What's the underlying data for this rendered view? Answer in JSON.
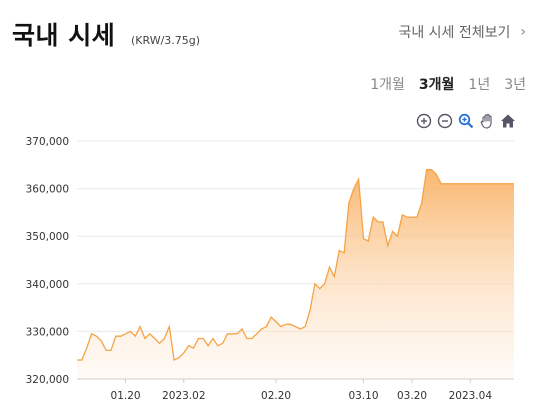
{
  "header": {
    "title": "국내 시세",
    "unit": "(KRW/3.75g)",
    "view_all": "국내 시세 전체보기"
  },
  "periods": [
    {
      "label": "1개월",
      "active": false
    },
    {
      "label": "3개월",
      "active": true
    },
    {
      "label": "1년",
      "active": false
    },
    {
      "label": "3년",
      "active": false
    }
  ],
  "tools": [
    "zoom-in-icon",
    "zoom-out-icon",
    "zoom-select-icon",
    "pan-hand-icon",
    "home-reset-icon"
  ],
  "colors": {
    "line": "#f5a347",
    "fill_top": "#f9b266",
    "fill_bottom": "#fff3e6",
    "grid": "#e9e9e9"
  },
  "chart_data": {
    "type": "area",
    "x_ticks": [
      "01.20",
      "2023.02",
      "02.20",
      "03.10",
      "03.20",
      "2023.04"
    ],
    "y_ticks": [
      "320,000",
      "330,000",
      "340,000",
      "350,000",
      "360,000",
      "370,000"
    ],
    "ylim": [
      320000,
      370000
    ],
    "x": [
      "01.10",
      "01.11",
      "01.12",
      "01.13",
      "01.14",
      "01.15",
      "01.16",
      "01.17",
      "01.18",
      "01.19",
      "01.20",
      "01.21",
      "01.22",
      "01.23",
      "01.24",
      "01.25",
      "01.26",
      "01.27",
      "01.28",
      "01.29",
      "01.30",
      "01.31",
      "02.01",
      "02.02",
      "02.03",
      "02.04",
      "02.05",
      "02.06",
      "02.07",
      "02.08",
      "02.09",
      "02.10",
      "02.11",
      "02.12",
      "02.13",
      "02.14",
      "02.15",
      "02.16",
      "02.17",
      "02.18",
      "02.19",
      "02.20",
      "02.21",
      "02.22",
      "02.23",
      "02.24",
      "02.25",
      "02.26",
      "02.27",
      "02.28",
      "03.01",
      "03.02",
      "03.03",
      "03.04",
      "03.05",
      "03.06",
      "03.07",
      "03.08",
      "03.09",
      "03.10",
      "03.11",
      "03.12",
      "03.13",
      "03.14",
      "03.15",
      "03.16",
      "03.17",
      "03.18",
      "03.19",
      "03.20",
      "03.21",
      "03.22",
      "03.23",
      "03.24",
      "03.25",
      "03.26",
      "03.27",
      "03.28",
      "03.29",
      "03.30",
      "03.31",
      "04.01",
      "04.02",
      "04.03",
      "04.04",
      "04.05",
      "04.06",
      "04.07",
      "04.08",
      "04.09",
      "04.10"
    ],
    "values": [
      324000,
      324000,
      326500,
      329500,
      329000,
      328000,
      326000,
      326000,
      329000,
      329000,
      329500,
      330000,
      329000,
      331000,
      328500,
      329500,
      328500,
      327500,
      328500,
      331000,
      324000,
      324500,
      325500,
      327000,
      326500,
      328500,
      328500,
      327000,
      328500,
      327000,
      327500,
      329500,
      329500,
      329500,
      330500,
      328500,
      328500,
      329500,
      330500,
      331000,
      333000,
      332000,
      331000,
      331500,
      331500,
      331000,
      330500,
      331000,
      334500,
      340000,
      339000,
      340000,
      343500,
      341500,
      347000,
      346500,
      357000,
      360000,
      362000,
      349500,
      349000,
      354000,
      353000,
      353000,
      348000,
      351000,
      350000,
      354500,
      354000,
      354000,
      354000,
      357000,
      364000,
      364000,
      363000,
      361000,
      361000,
      361000,
      361000,
      361000,
      361000,
      361000,
      361000,
      361000,
      361000,
      361000,
      361000,
      361000,
      361000,
      361000,
      361000
    ]
  }
}
